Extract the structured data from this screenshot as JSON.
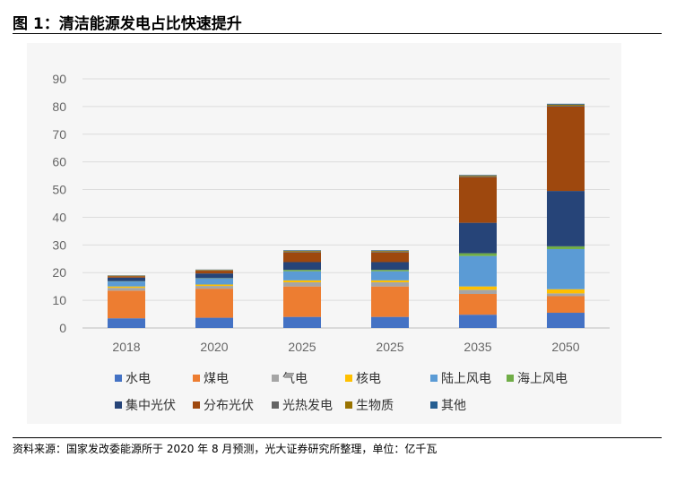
{
  "figure": {
    "title": "图 1：清洁能源发电占比快速提升",
    "source": "资料来源：国家发改委能源所于 2020 年 8 月预测，光大证券研究所整理，单位：亿千瓦"
  },
  "chart_data": {
    "type": "bar",
    "stacked": true,
    "categories": [
      "2018",
      "2020",
      "2025",
      "2025",
      "2035",
      "2050"
    ],
    "ylim": [
      0,
      90
    ],
    "yticks": [
      0,
      10,
      20,
      30,
      40,
      50,
      60,
      70,
      80,
      90
    ],
    "grid": true,
    "legend_position": "bottom",
    "series": [
      {
        "name": "水电",
        "color": "#4472c4",
        "values": [
          3.5,
          3.7,
          4.0,
          4.0,
          4.8,
          5.5
        ]
      },
      {
        "name": "煤电",
        "color": "#ed7d31",
        "values": [
          10.0,
          10.5,
          11.0,
          11.0,
          7.5,
          6.0
        ]
      },
      {
        "name": "气电",
        "color": "#a5a5a5",
        "values": [
          1.0,
          1.0,
          1.5,
          1.5,
          1.5,
          1.0
        ]
      },
      {
        "name": "核电",
        "color": "#ffc000",
        "values": [
          0.5,
          0.5,
          0.7,
          0.7,
          1.2,
          1.5
        ]
      },
      {
        "name": "陆上风电",
        "color": "#5b9bd5",
        "values": [
          1.8,
          2.2,
          3.3,
          3.3,
          11.0,
          14.5
        ]
      },
      {
        "name": "海上风电",
        "color": "#70ad47",
        "values": [
          0.1,
          0.1,
          0.5,
          0.5,
          1.0,
          1.0
        ]
      },
      {
        "name": "集中光伏",
        "color": "#264478",
        "values": [
          1.3,
          1.7,
          2.8,
          2.8,
          11.0,
          20.0
        ]
      },
      {
        "name": "分布光伏",
        "color": "#9e480e",
        "values": [
          0.5,
          1.0,
          3.5,
          3.5,
          16.5,
          30.5
        ]
      },
      {
        "name": "光热发电",
        "color": "#636363",
        "values": [
          0.0,
          0.1,
          0.3,
          0.3,
          0.3,
          0.3
        ]
      },
      {
        "name": "生物质",
        "color": "#997300",
        "values": [
          0.2,
          0.2,
          0.3,
          0.3,
          0.3,
          0.4
        ]
      },
      {
        "name": "其他",
        "color": "#255e91",
        "values": [
          0.1,
          0.1,
          0.2,
          0.2,
          0.2,
          0.3
        ]
      }
    ]
  }
}
